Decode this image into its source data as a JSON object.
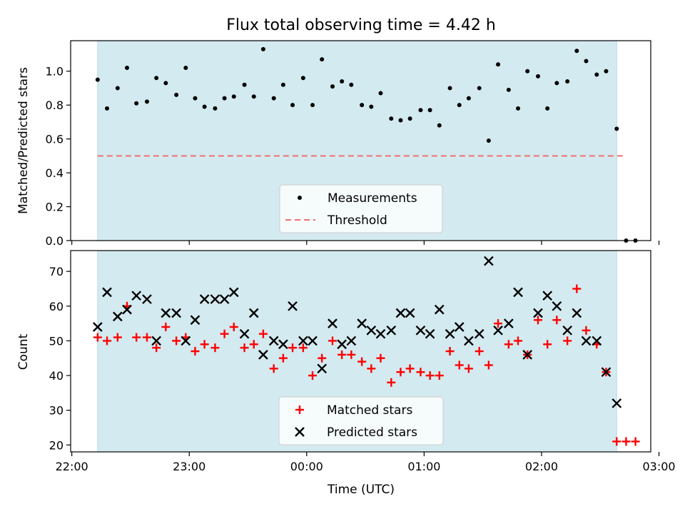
{
  "title": "Flux total observing time = 4.42 h",
  "chart_data": [
    {
      "type": "scatter",
      "ylabel": "Matched/Predicted stars",
      "xlim": [
        -0.01,
        4.93
      ],
      "ylim": [
        0,
        1.18
      ],
      "yticks": [
        0.0,
        0.2,
        0.4,
        0.6,
        0.8,
        1.0
      ],
      "ytick_labels": [
        "0.0",
        "0.2",
        "0.4",
        "0.6",
        "0.8",
        "1.0"
      ],
      "shaded_span": [
        0.22,
        4.64
      ],
      "shade_color": "#d3eaf0",
      "threshold": {
        "value": 0.5,
        "x": [
          0.22,
          4.72
        ],
        "color": "#f07070"
      },
      "legend": {
        "location": "lower center",
        "entries": [
          "Measurements",
          "Threshold"
        ]
      },
      "x": [
        0.22,
        0.3,
        0.39,
        0.47,
        0.55,
        0.64,
        0.72,
        0.8,
        0.89,
        0.97,
        1.05,
        1.13,
        1.22,
        1.3,
        1.38,
        1.47,
        1.55,
        1.63,
        1.72,
        1.8,
        1.88,
        1.97,
        2.05,
        2.13,
        2.22,
        2.3,
        2.38,
        2.47,
        2.55,
        2.63,
        2.72,
        2.8,
        2.88,
        2.97,
        3.05,
        3.13,
        3.22,
        3.3,
        3.38,
        3.47,
        3.55,
        3.63,
        3.72,
        3.8,
        3.88,
        3.97,
        4.05,
        4.13,
        4.22,
        4.3,
        4.38,
        4.47,
        4.55,
        4.64,
        4.72,
        4.8
      ],
      "y": [
        0.95,
        0.78,
        0.9,
        1.02,
        0.81,
        0.82,
        0.96,
        0.93,
        0.86,
        1.02,
        0.84,
        0.79,
        0.78,
        0.84,
        0.85,
        0.92,
        0.85,
        1.13,
        0.84,
        0.92,
        0.8,
        0.96,
        0.8,
        1.07,
        0.91,
        0.94,
        0.92,
        0.8,
        0.79,
        0.87,
        0.72,
        0.71,
        0.72,
        0.77,
        0.77,
        0.68,
        0.9,
        0.8,
        0.84,
        0.9,
        0.59,
        1.04,
        0.89,
        0.78,
        1.0,
        0.97,
        0.78,
        0.93,
        0.94,
        1.12,
        1.06,
        0.98,
        1.0,
        0.66,
        0.0,
        0.0
      ],
      "colors": {
        "measurements": "#000000"
      }
    },
    {
      "type": "scatter",
      "xlabel": "Time (UTC)",
      "ylabel": "Count",
      "xlim": [
        -0.01,
        4.93
      ],
      "ylim": [
        18,
        76
      ],
      "yticks": [
        20,
        30,
        40,
        50,
        60,
        70
      ],
      "ytick_labels": [
        "20",
        "30",
        "40",
        "50",
        "60",
        "70"
      ],
      "xticks": [
        0,
        1,
        2,
        3,
        4,
        5
      ],
      "xtick_labels": [
        "22:00",
        "23:00",
        "00:00",
        "01:00",
        "02:00",
        "03:00"
      ],
      "shaded_span": [
        0.22,
        4.64
      ],
      "legend": {
        "location": "lower center",
        "entries": [
          "Matched stars",
          "Predicted stars"
        ]
      },
      "x": [
        0.22,
        0.3,
        0.39,
        0.47,
        0.55,
        0.64,
        0.72,
        0.8,
        0.89,
        0.97,
        1.05,
        1.13,
        1.22,
        1.3,
        1.38,
        1.47,
        1.55,
        1.63,
        1.72,
        1.8,
        1.88,
        1.97,
        2.05,
        2.13,
        2.22,
        2.3,
        2.38,
        2.47,
        2.55,
        2.63,
        2.72,
        2.8,
        2.88,
        2.97,
        3.05,
        3.13,
        3.22,
        3.3,
        3.38,
        3.47,
        3.55,
        3.63,
        3.72,
        3.8,
        3.88,
        3.97,
        4.05,
        4.13,
        4.22,
        4.3,
        4.38,
        4.47,
        4.55,
        4.64,
        4.72,
        4.8
      ],
      "series": [
        {
          "name": "Matched stars",
          "marker": "plus",
          "color": "#ff0000",
          "values": [
            51,
            50,
            51,
            60,
            51,
            51,
            48,
            54,
            50,
            51,
            47,
            49,
            48,
            52,
            54,
            48,
            49,
            52,
            42,
            45,
            48,
            48,
            40,
            45,
            50,
            46,
            46,
            44,
            42,
            45,
            38,
            41,
            42,
            41,
            40,
            40,
            47,
            43,
            42,
            47,
            43,
            55,
            49,
            50,
            46,
            56,
            49,
            56,
            50,
            65,
            53,
            49,
            41,
            21,
            21,
            21
          ]
        },
        {
          "name": "Predicted stars",
          "marker": "x",
          "color": "#000000",
          "values": [
            54,
            64,
            57,
            59,
            63,
            62,
            50,
            58,
            58,
            50,
            56,
            62,
            62,
            62,
            64,
            52,
            58,
            46,
            50,
            49,
            60,
            50,
            50,
            42,
            55,
            49,
            50,
            55,
            53,
            52,
            53,
            58,
            58,
            53,
            52,
            59,
            52,
            54,
            50,
            52,
            73,
            53,
            55,
            64,
            46,
            58,
            63,
            60,
            53,
            58,
            50,
            50,
            41,
            32
          ]
        }
      ]
    }
  ]
}
